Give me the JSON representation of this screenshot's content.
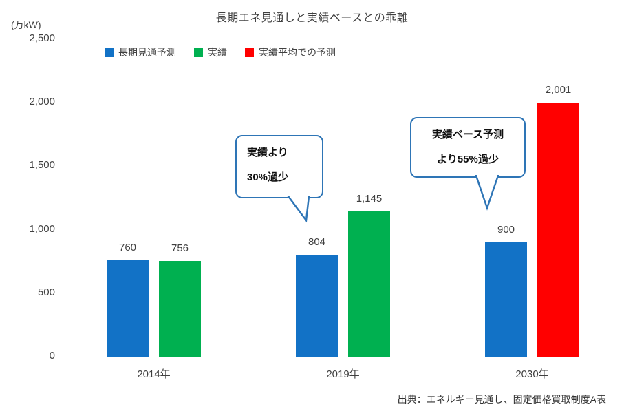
{
  "title": "長期エネ見通しと実績ベースとの乖離",
  "unit_label": "(万kW)",
  "source": "出典：エネルギー見通し、固定価格買取制度A表",
  "colors": {
    "blue": "#1272C6",
    "green": "#00B050",
    "red": "#FF0000",
    "annotation_border": "#2E75B6",
    "text": "#404040"
  },
  "chart_data": {
    "type": "bar",
    "title": "長期エネ見通しと実績ベースとの乖離",
    "ylabel": "(万kW)",
    "categories": [
      "2014年",
      "2019年",
      "2030年"
    ],
    "series": [
      {
        "name": "長期見通予測",
        "color": "#1272C6",
        "values": [
          760,
          804,
          900
        ]
      },
      {
        "name": "実績",
        "color": "#00B050",
        "values": [
          756,
          1145,
          null
        ]
      },
      {
        "name": "実績平均での予測",
        "color": "#FF0000",
        "values": [
          null,
          null,
          2001
        ]
      }
    ],
    "ylim": [
      0,
      2500
    ],
    "yticks": [
      0,
      500,
      1000,
      1500,
      2000,
      2500
    ],
    "grid": false,
    "legend_position": "top",
    "data_labels": true,
    "annotations": [
      {
        "lines": [
          "実績より",
          "30%過少"
        ],
        "target": "2019年 長期見通予測"
      },
      {
        "lines": [
          "実績ベース予測",
          "より55%過少"
        ],
        "target": "2030年 長期見通予測"
      }
    ]
  }
}
